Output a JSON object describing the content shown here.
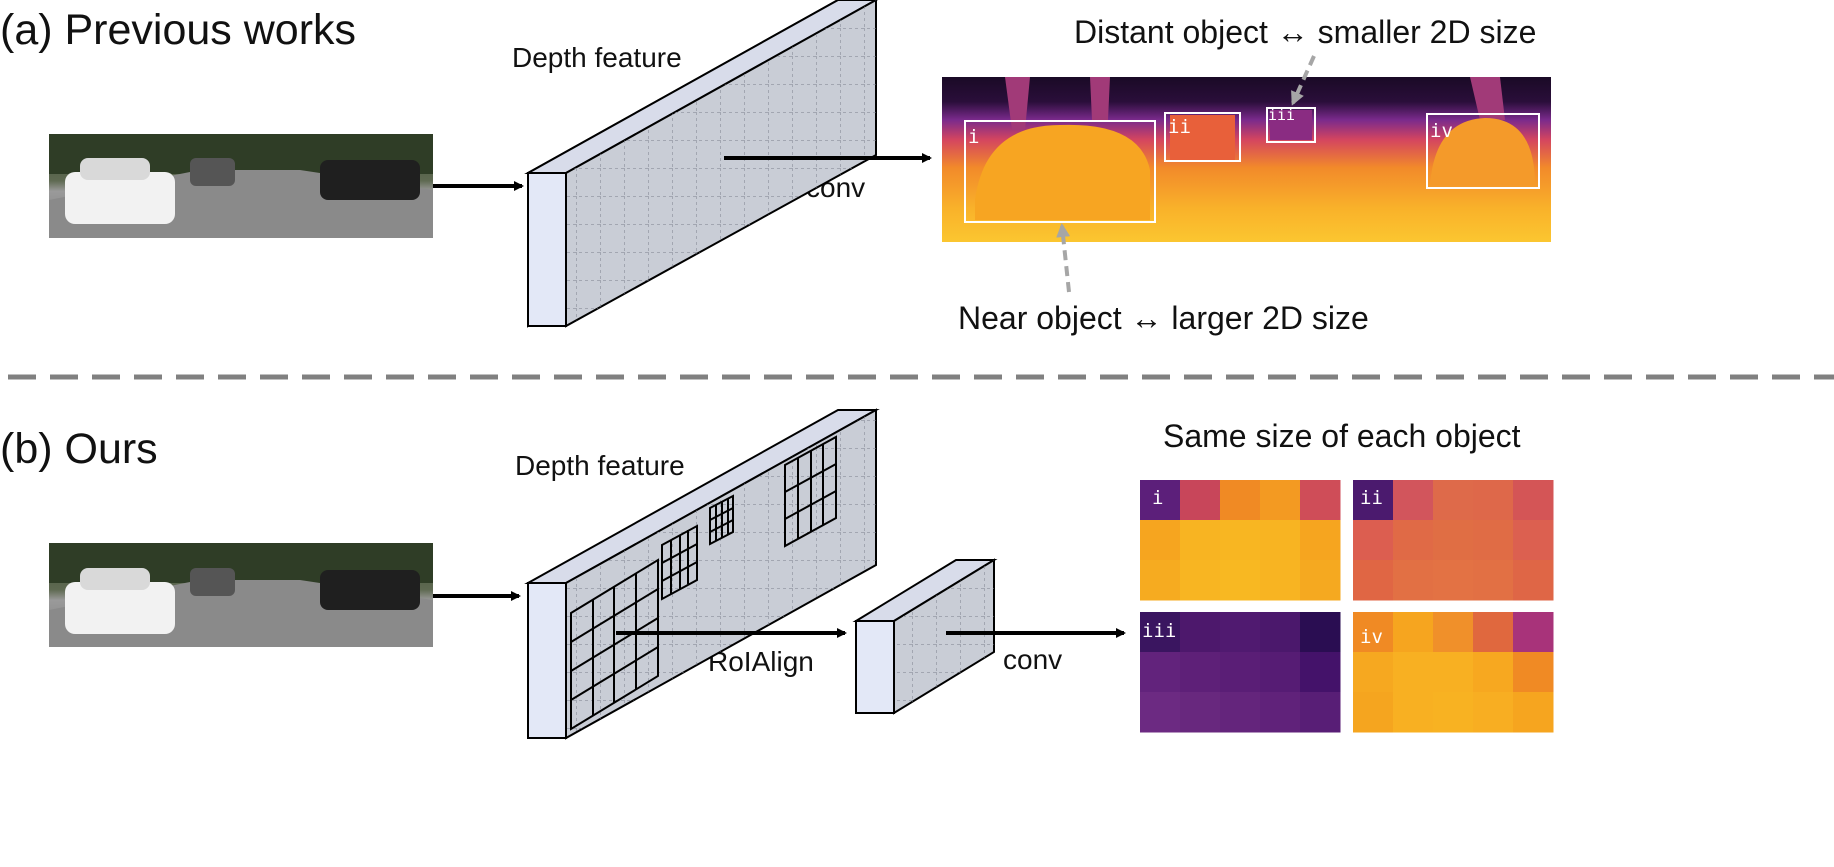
{
  "panel_a": {
    "title": "(a) Previous works",
    "feature_label": "Depth feature",
    "conv_label": "conv",
    "distant_annotation": "Distant object ↔ smaller 2D size",
    "near_annotation": "Near object ↔ larger 2D size",
    "box_labels": [
      "i",
      "ii",
      "iii",
      "iv"
    ]
  },
  "panel_b": {
    "title": "(b) Ours",
    "feature_label": "Depth feature",
    "roialign_label": "RoIAlign",
    "conv_label": "conv",
    "output_title": "Same size of each object",
    "patch_labels": [
      "i",
      "ii",
      "iii",
      "iv"
    ]
  },
  "colors": {
    "feature_face": "#c9cdd6",
    "feature_side": "#e3e8f7",
    "annotation_arrow": "#a6a6a6",
    "divider": "#808080",
    "sky_dark": "#1a0a26",
    "depth_purple": "#7a2a8c",
    "depth_orange": "#f5a22a",
    "depth_yellow": "#fbc630"
  },
  "patches": {
    "i": [
      [
        "#5c1f7a",
        "#c8465a",
        "#f08a24",
        "#f39a22",
        "#cf4d58"
      ],
      [
        "#f6a51f",
        "#f8b422",
        "#f8b622",
        "#f8b422",
        "#f6a51f"
      ],
      [
        "#f6ab20",
        "#f8b522",
        "#f8b822",
        "#f8b422",
        "#f5a920"
      ]
    ],
    "ii": [
      [
        "#4b1a6e",
        "#d2555c",
        "#de6a4a",
        "#de684a",
        "#d45556"
      ],
      [
        "#dc5e50",
        "#e06a46",
        "#e06e44",
        "#e06c45",
        "#dc6050"
      ],
      [
        "#e06644",
        "#e27044",
        "#e37244",
        "#e27044",
        "#df6646"
      ]
    ],
    "iii": [
      [
        "#3a1560",
        "#4d186c",
        "#501a70",
        "#4b186c",
        "#2a0d52"
      ],
      [
        "#62237c",
        "#5e2078",
        "#5a1e76",
        "#561c74",
        "#44126a"
      ],
      [
        "#6c2a82",
        "#68287e",
        "#64257c",
        "#60227a",
        "#581e76"
      ]
    ],
    "iv": [
      [
        "#f08a24",
        "#f6a51f",
        "#f0902a",
        "#e0683e",
        "#a8337a"
      ],
      [
        "#f6a820",
        "#f8b022",
        "#f8b022",
        "#f7a820",
        "#f08a24"
      ],
      [
        "#f5a51f",
        "#f8b022",
        "#f8b222",
        "#f8ae22",
        "#f6a51f"
      ]
    ]
  }
}
